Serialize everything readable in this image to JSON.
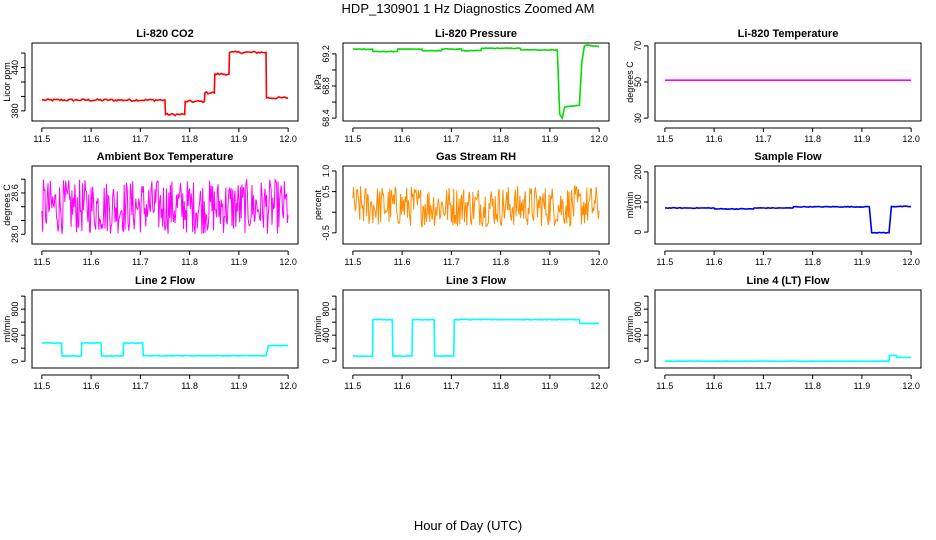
{
  "page": {
    "title": "HDP_130901  1 Hz Diagnostics Zoomed AM",
    "bottom_label": "Hour of Day (UTC)"
  },
  "chart_data": [
    {
      "type": "line",
      "title": "Li-820 CO2",
      "ylabel": "Licor ppm",
      "color": "#ff0000",
      "xlim": [
        11.5,
        12.0
      ],
      "ylim": [
        370,
        470
      ],
      "xticks": [
        11.5,
        11.6,
        11.7,
        11.8,
        11.9,
        12.0
      ],
      "xtick_labels": [
        "11.5",
        "11.6",
        "11.7",
        "11.8",
        "11.9",
        "12.0"
      ],
      "yticks": [
        380,
        400,
        420,
        440,
        460
      ],
      "ytick_labels": [
        "380",
        "",
        "",
        "440",
        ""
      ],
      "series": [
        {
          "x": [
            11.5,
            11.75,
            11.751,
            11.79,
            11.791,
            11.83,
            11.831,
            11.85,
            11.851,
            11.88,
            11.881,
            11.955,
            11.956,
            12.0
          ],
          "y": [
            395,
            395,
            375,
            375,
            393,
            393,
            405,
            405,
            431,
            431,
            461,
            461,
            398,
            398
          ],
          "noise": 1.5
        }
      ]
    },
    {
      "type": "line",
      "title": "Li-820 Pressure",
      "ylabel": "kPa",
      "color": "#00dd00",
      "xlim": [
        11.5,
        12.0
      ],
      "ylim": [
        68.4,
        69.3
      ],
      "xticks": [
        11.5,
        11.6,
        11.7,
        11.8,
        11.9,
        12.0
      ],
      "xtick_labels": [
        "11.5",
        "11.6",
        "11.7",
        "11.8",
        "11.9",
        "12.0"
      ],
      "yticks": [
        68.4,
        68.6,
        68.8,
        69.0,
        69.2
      ],
      "ytick_labels": [
        "68.4",
        "",
        "68.8",
        "",
        "69.2"
      ],
      "series": [
        {
          "x": [
            11.5,
            11.54,
            11.541,
            11.59,
            11.591,
            11.64,
            11.641,
            11.68,
            11.681,
            11.72,
            11.721,
            11.76,
            11.761,
            11.84,
            11.841,
            11.915,
            11.92,
            11.925,
            11.93,
            11.96,
            11.965,
            11.97,
            11.975,
            12.0
          ],
          "y": [
            69.26,
            69.26,
            69.23,
            69.23,
            69.26,
            69.26,
            69.24,
            69.24,
            69.26,
            69.26,
            69.24,
            69.24,
            69.27,
            69.27,
            69.25,
            69.25,
            68.45,
            68.4,
            68.54,
            68.56,
            69.1,
            69.3,
            69.31,
            69.29
          ],
          "noise": 0.004
        }
      ]
    },
    {
      "type": "line",
      "title": "Li-820 Temperature",
      "ylabel": "degrees C",
      "color": "#ff00ff",
      "xlim": [
        11.5,
        12.0
      ],
      "ylim": [
        30,
        70
      ],
      "xticks": [
        11.5,
        11.6,
        11.7,
        11.8,
        11.9,
        12.0
      ],
      "xtick_labels": [
        "11.5",
        "11.6",
        "11.7",
        "11.8",
        "11.9",
        "12.0"
      ],
      "yticks": [
        30,
        50,
        70
      ],
      "ytick_labels": [
        "30",
        "50",
        "70"
      ],
      "series": [
        {
          "x": [
            11.5,
            12.0
          ],
          "y": [
            51,
            51
          ],
          "noise": 0
        }
      ]
    },
    {
      "type": "line",
      "title": "Ambient Box Temperature",
      "ylabel": "degrees C",
      "color": "#ff00ff",
      "xlim": [
        11.5,
        12.0
      ],
      "ylim": [
        27.9,
        28.95
      ],
      "xticks": [
        11.5,
        11.6,
        11.7,
        11.8,
        11.9,
        12.0
      ],
      "xtick_labels": [
        "11.5",
        "11.6",
        "11.7",
        "11.8",
        "11.9",
        "12.0"
      ],
      "yticks": [
        28.0,
        28.2,
        28.4,
        28.6,
        28.8
      ],
      "ytick_labels": [
        "28.0",
        "",
        "",
        "28.6",
        ""
      ],
      "series": [
        {
          "x": [
            11.5,
            12.0
          ],
          "y": [
            28.4,
            28.4
          ],
          "noise": 0.4,
          "dense": true
        }
      ]
    },
    {
      "type": "line",
      "title": "Gas Stream RH",
      "ylabel": "percent",
      "color": "#ff8c00",
      "xlim": [
        11.5,
        12.0
      ],
      "ylim": [
        -0.7,
        1.05
      ],
      "xticks": [
        11.5,
        11.6,
        11.7,
        11.8,
        11.9,
        12.0
      ],
      "xtick_labels": [
        "11.5",
        "11.6",
        "11.7",
        "11.8",
        "11.9",
        "12.0"
      ],
      "yticks": [
        -0.5,
        0.0,
        0.5,
        1.0
      ],
      "ytick_labels": [
        "-0.5",
        "",
        "0.5",
        "1.0"
      ],
      "series": [
        {
          "x": [
            11.5,
            12.0
          ],
          "y": [
            0.15,
            0.15
          ],
          "noise": 0.5,
          "dense": true
        }
      ]
    },
    {
      "type": "line",
      "title": "Sample Flow",
      "ylabel": "ml/min",
      "color": "#0000dd",
      "xlim": [
        11.5,
        12.0
      ],
      "ylim": [
        -30,
        210
      ],
      "xticks": [
        11.5,
        11.6,
        11.7,
        11.8,
        11.9,
        12.0
      ],
      "xtick_labels": [
        "11.5",
        "11.6",
        "11.7",
        "11.8",
        "11.9",
        "12.0"
      ],
      "yticks": [
        0,
        100,
        200
      ],
      "ytick_labels": [
        "0",
        "100",
        "200"
      ],
      "series": [
        {
          "x": [
            11.5,
            11.6,
            11.601,
            11.68,
            11.681,
            11.76,
            11.761,
            11.915,
            11.92,
            11.955,
            11.96,
            12.0
          ],
          "y": [
            80,
            80,
            77,
            77,
            80,
            80,
            84,
            84,
            -2,
            -2,
            85,
            85
          ],
          "noise": 1.2
        }
      ]
    },
    {
      "type": "line",
      "title": "Line 2 Flow",
      "ylabel": "ml/min",
      "color": "#00ffff",
      "xlim": [
        11.5,
        12.0
      ],
      "ylim": [
        -60,
        1050
      ],
      "xticks": [
        11.5,
        11.6,
        11.7,
        11.8,
        11.9,
        12.0
      ],
      "xtick_labels": [
        "11.5",
        "11.6",
        "11.7",
        "11.8",
        "11.9",
        "12.0"
      ],
      "yticks": [
        0,
        200,
        400,
        600,
        800,
        1000
      ],
      "ytick_labels": [
        "0",
        "",
        "400",
        "",
        "800",
        ""
      ],
      "series": [
        {
          "x": [
            11.5,
            11.54,
            11.541,
            11.58,
            11.581,
            11.62,
            11.621,
            11.665,
            11.666,
            11.705,
            11.706,
            11.955,
            11.96,
            12.0
          ],
          "y": [
            280,
            280,
            80,
            80,
            280,
            280,
            80,
            80,
            280,
            280,
            85,
            85,
            240,
            240
          ],
          "noise": 5
        }
      ]
    },
    {
      "type": "line",
      "title": "Line 3 Flow",
      "ylabel": "ml/min",
      "color": "#00ffff",
      "xlim": [
        11.5,
        12.0
      ],
      "ylim": [
        -60,
        1050
      ],
      "xticks": [
        11.5,
        11.6,
        11.7,
        11.8,
        11.9,
        12.0
      ],
      "xtick_labels": [
        "11.5",
        "11.6",
        "11.7",
        "11.8",
        "11.9",
        "12.0"
      ],
      "yticks": [
        0,
        200,
        400,
        600,
        800,
        1000
      ],
      "ytick_labels": [
        "0",
        "",
        "400",
        "",
        "800",
        ""
      ],
      "series": [
        {
          "x": [
            11.5,
            11.54,
            11.541,
            11.58,
            11.581,
            11.62,
            11.621,
            11.665,
            11.666,
            11.705,
            11.706,
            11.96,
            11.961,
            12.0
          ],
          "y": [
            80,
            80,
            640,
            640,
            80,
            80,
            640,
            640,
            80,
            80,
            640,
            640,
            580,
            580
          ],
          "noise": 5
        }
      ]
    },
    {
      "type": "line",
      "title": "Line 4 (LT) Flow",
      "ylabel": "ml/min",
      "color": "#00ffff",
      "xlim": [
        11.5,
        12.0
      ],
      "ylim": [
        -60,
        1050
      ],
      "xticks": [
        11.5,
        11.6,
        11.7,
        11.8,
        11.9,
        12.0
      ],
      "xtick_labels": [
        "11.5",
        "11.6",
        "11.7",
        "11.8",
        "11.9",
        "12.0"
      ],
      "yticks": [
        0,
        200,
        400,
        600,
        800,
        1000
      ],
      "ytick_labels": [
        "0",
        "",
        "400",
        "",
        "800",
        ""
      ],
      "series": [
        {
          "x": [
            11.5,
            11.955,
            11.956,
            11.97,
            11.971,
            12.0
          ],
          "y": [
            0,
            0,
            90,
            90,
            60,
            60
          ],
          "noise": 2
        }
      ]
    }
  ]
}
